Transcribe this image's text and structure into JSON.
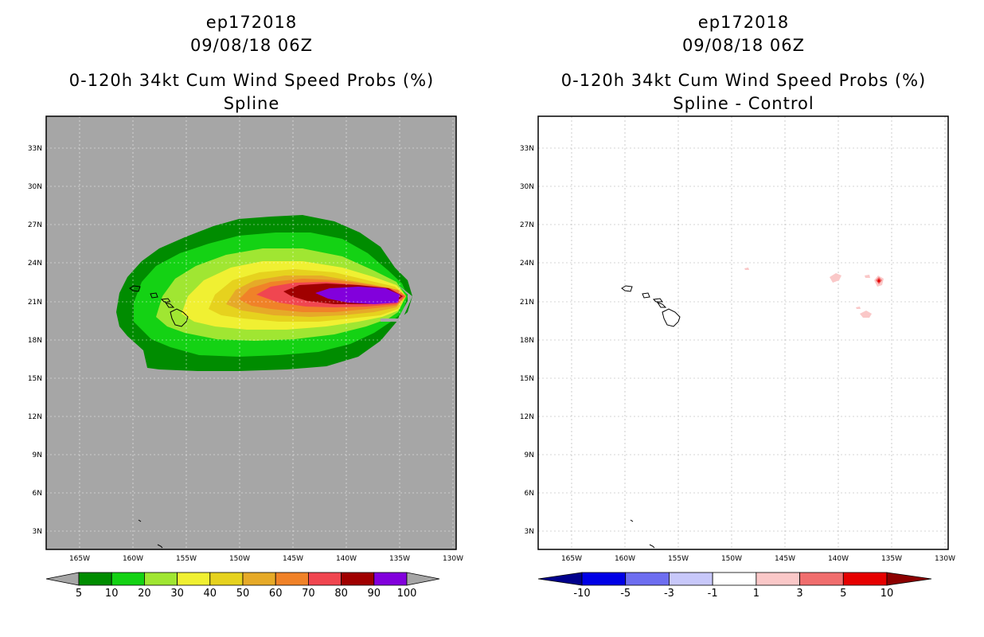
{
  "left_panel": {
    "storm_id": "ep172018",
    "datetime": "09/08/18 06Z",
    "product": "0-120h 34kt Cum Wind Speed Probs (%)",
    "subtitle": "Spline",
    "colorbar": {
      "labels": [
        "5",
        "10",
        "20",
        "30",
        "40",
        "50",
        "60",
        "70",
        "80",
        "90",
        "100"
      ],
      "colors": [
        "#008c00",
        "#14d214",
        "#a0e632",
        "#f0f032",
        "#e6d21e",
        "#e6aa28",
        "#f08228",
        "#f04650",
        "#a00000",
        "#8200dc"
      ],
      "extend_color": "#a6a6a6"
    }
  },
  "right_panel": {
    "storm_id": "ep172018",
    "datetime": "09/08/18 06Z",
    "product": "0-120h 34kt Cum Wind Speed Probs (%)",
    "subtitle": "Spline - Control",
    "colorbar": {
      "labels": [
        "-10",
        "-5",
        "-3",
        "-1",
        "1",
        "3",
        "5",
        "10"
      ],
      "colors": [
        "#0000e6",
        "#6e6ef0",
        "#c8c8fa",
        "#ffffff",
        "#fac8c8",
        "#f06e6e",
        "#e60000"
      ],
      "extend_low_color": "#00008c",
      "extend_high_color": "#8c0000"
    }
  },
  "map_axes": {
    "lon_labels": [
      "165W",
      "160W",
      "155W",
      "150W",
      "145W",
      "140W",
      "135W",
      "130W"
    ],
    "lat_labels": [
      "33N",
      "30N",
      "27N",
      "24N",
      "21N",
      "18N",
      "15N",
      "12N",
      "9N",
      "6N",
      "3N"
    ]
  }
}
